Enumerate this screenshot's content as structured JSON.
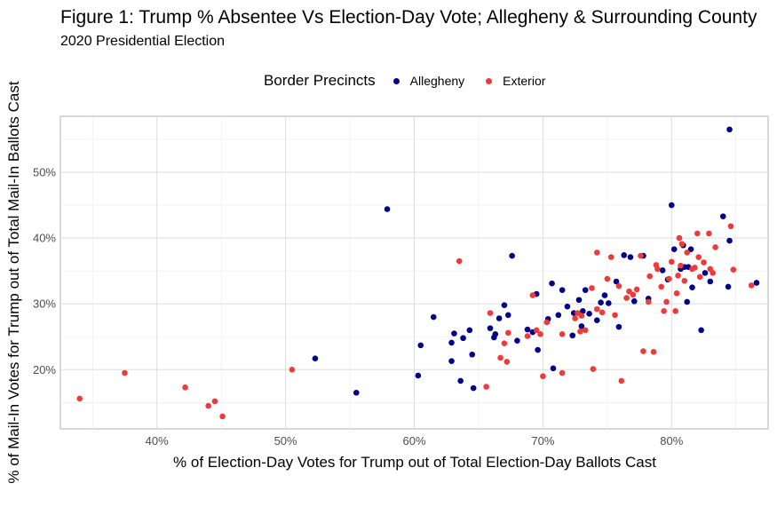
{
  "chart_data": {
    "type": "scatter",
    "title": "Figure 1: Trump % Absentee Vs Election-Day Vote; Allegheny & Surrounding County",
    "subtitle": "2020 Presidential Election",
    "xlabel": "% of Election-Day Votes for Trump out of Total Election-Day Ballots Cast",
    "ylabel": "% of Mail-In Votes for Trump out of Total Mail-In Ballots Cast",
    "xlim": [
      32.5,
      87.5
    ],
    "ylim": [
      11.0,
      58.5
    ],
    "x_ticks": [
      40,
      50,
      60,
      70,
      80
    ],
    "x_tick_labels": [
      "40%",
      "50%",
      "60%",
      "70%",
      "80%"
    ],
    "y_ticks": [
      20,
      30,
      40,
      50
    ],
    "y_tick_labels": [
      "20%",
      "30%",
      "40%",
      "50%"
    ],
    "grid": true,
    "legend": {
      "title": "Border Precincts",
      "position": "top"
    },
    "series": [
      {
        "name": "Allegheny",
        "color": "#00008B",
        "points": [
          [
            52.3,
            21.7
          ],
          [
            55.5,
            16.5
          ],
          [
            57.9,
            44.4
          ],
          [
            60.3,
            19.1
          ],
          [
            60.5,
            23.7
          ],
          [
            61.5,
            28.0
          ],
          [
            62.9,
            24.1
          ],
          [
            62.9,
            21.3
          ],
          [
            63.1,
            25.5
          ],
          [
            63.6,
            18.3
          ],
          [
            63.8,
            24.8
          ],
          [
            64.3,
            26.0
          ],
          [
            64.5,
            22.3
          ],
          [
            64.6,
            17.2
          ],
          [
            65.9,
            26.3
          ],
          [
            66.2,
            24.9
          ],
          [
            66.3,
            25.4
          ],
          [
            66.6,
            27.8
          ],
          [
            67.0,
            29.8
          ],
          [
            67.3,
            28.3
          ],
          [
            67.6,
            37.3
          ],
          [
            68.0,
            24.4
          ],
          [
            68.8,
            26.1
          ],
          [
            69.2,
            25.7
          ],
          [
            69.5,
            31.5
          ],
          [
            69.6,
            23.0
          ],
          [
            70.4,
            27.7
          ],
          [
            70.7,
            33.1
          ],
          [
            70.8,
            20.2
          ],
          [
            71.2,
            28.3
          ],
          [
            71.5,
            32.1
          ],
          [
            71.9,
            29.6
          ],
          [
            72.3,
            25.2
          ],
          [
            72.4,
            28.6
          ],
          [
            72.8,
            30.6
          ],
          [
            73.0,
            26.6
          ],
          [
            73.1,
            28.9
          ],
          [
            73.3,
            32.1
          ],
          [
            73.6,
            28.5
          ],
          [
            74.2,
            27.5
          ],
          [
            74.5,
            30.2
          ],
          [
            74.8,
            31.3
          ],
          [
            75.1,
            30.1
          ],
          [
            75.7,
            33.4
          ],
          [
            75.9,
            26.5
          ],
          [
            76.3,
            37.4
          ],
          [
            76.8,
            37.1
          ],
          [
            77.1,
            30.4
          ],
          [
            77.8,
            37.3
          ],
          [
            78.2,
            30.8
          ],
          [
            79.3,
            35.1
          ],
          [
            79.7,
            33.7
          ],
          [
            80.0,
            45.0
          ],
          [
            80.2,
            38.3
          ],
          [
            80.7,
            35.3
          ],
          [
            80.9,
            38.9
          ],
          [
            81.0,
            35.6
          ],
          [
            81.2,
            30.3
          ],
          [
            81.3,
            35.6
          ],
          [
            81.5,
            38.3
          ],
          [
            81.6,
            32.5
          ],
          [
            82.3,
            26.0
          ],
          [
            82.6,
            34.7
          ],
          [
            83.0,
            33.4
          ],
          [
            84.0,
            43.3
          ],
          [
            84.4,
            32.6
          ],
          [
            84.5,
            39.6
          ],
          [
            84.5,
            56.5
          ],
          [
            86.6,
            33.2
          ]
        ]
      },
      {
        "name": "Exterior",
        "color": "#F03A3A",
        "points": [
          [
            34.0,
            15.6
          ],
          [
            37.5,
            19.5
          ],
          [
            42.2,
            17.3
          ],
          [
            44.0,
            14.5
          ],
          [
            44.5,
            15.2
          ],
          [
            45.1,
            12.9
          ],
          [
            50.5,
            20.0
          ],
          [
            63.5,
            36.5
          ],
          [
            65.6,
            17.4
          ],
          [
            65.9,
            28.6
          ],
          [
            66.7,
            21.8
          ],
          [
            67.0,
            24.0
          ],
          [
            67.2,
            21.2
          ],
          [
            67.3,
            25.6
          ],
          [
            68.8,
            25.1
          ],
          [
            69.2,
            31.3
          ],
          [
            69.5,
            26.0
          ],
          [
            69.8,
            25.4
          ],
          [
            70.0,
            19.0
          ],
          [
            70.3,
            27.2
          ],
          [
            71.5,
            25.4
          ],
          [
            71.5,
            19.5
          ],
          [
            72.5,
            27.8
          ],
          [
            72.7,
            28.6
          ],
          [
            72.9,
            25.8
          ],
          [
            73.0,
            28.2
          ],
          [
            73.3,
            26.0
          ],
          [
            73.8,
            32.4
          ],
          [
            73.9,
            20.1
          ],
          [
            74.2,
            37.8
          ],
          [
            74.2,
            29.2
          ],
          [
            74.6,
            28.7
          ],
          [
            75.0,
            33.8
          ],
          [
            75.3,
            37.1
          ],
          [
            75.6,
            28.3
          ],
          [
            75.9,
            32.7
          ],
          [
            76.1,
            18.3
          ],
          [
            76.5,
            30.9
          ],
          [
            76.7,
            31.9
          ],
          [
            77.0,
            31.4
          ],
          [
            77.3,
            32.2
          ],
          [
            77.6,
            37.3
          ],
          [
            77.8,
            22.8
          ],
          [
            78.2,
            30.3
          ],
          [
            78.3,
            34.2
          ],
          [
            78.6,
            22.7
          ],
          [
            78.8,
            35.9
          ],
          [
            78.9,
            35.3
          ],
          [
            79.2,
            32.6
          ],
          [
            79.4,
            28.9
          ],
          [
            79.6,
            30.3
          ],
          [
            79.8,
            33.8
          ],
          [
            80.0,
            36.4
          ],
          [
            80.3,
            28.9
          ],
          [
            80.4,
            31.6
          ],
          [
            80.5,
            34.3
          ],
          [
            80.6,
            40.0
          ],
          [
            80.7,
            35.8
          ],
          [
            80.8,
            39.1
          ],
          [
            81.0,
            33.5
          ],
          [
            81.2,
            37.8
          ],
          [
            81.6,
            35.3
          ],
          [
            81.8,
            35.5
          ],
          [
            82.0,
            40.7
          ],
          [
            82.1,
            37.1
          ],
          [
            82.2,
            34.1
          ],
          [
            82.5,
            36.3
          ],
          [
            82.9,
            40.7
          ],
          [
            83.0,
            35.3
          ],
          [
            83.2,
            34.7
          ],
          [
            83.4,
            38.6
          ],
          [
            84.6,
            41.8
          ],
          [
            84.8,
            35.2
          ],
          [
            86.2,
            32.8
          ]
        ]
      }
    ]
  }
}
